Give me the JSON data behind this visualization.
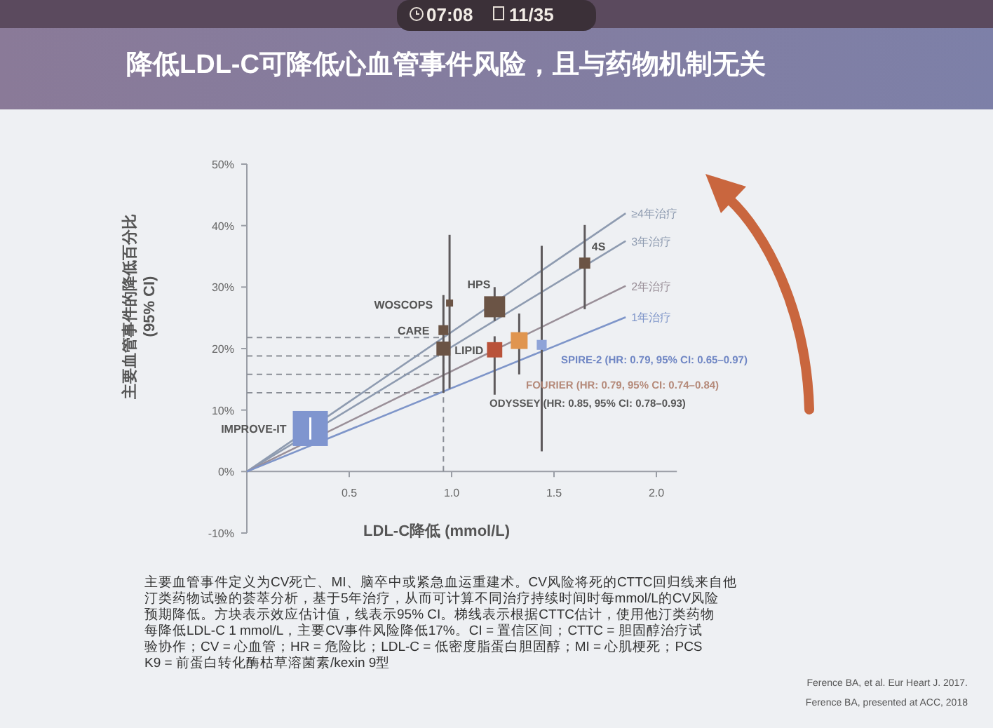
{
  "chart_data": {
    "type": "bubble",
    "title": "降低LDL-C可降低心血管事件风险，且与药物机制无关",
    "xlabel": "LDL-C降低 (mmol/L)",
    "ylabel": "主要血管事件的降低百分比\n(95% CI)",
    "xlim": [
      0,
      2.1
    ],
    "xticks": [
      {
        "value": 0.5,
        "label": "0.5"
      },
      {
        "value": 1,
        "label": "1.0"
      },
      {
        "value": 1.5,
        "label": "1.5"
      },
      {
        "value": 2,
        "label": "2.0"
      }
    ],
    "ylim": [
      -10,
      50
    ],
    "yticks": [
      {
        "value": -10,
        "label": "-10%"
      },
      {
        "value": 0,
        "label": "0%"
      },
      {
        "value": 10,
        "label": "10%"
      },
      {
        "value": 20,
        "label": "20%"
      },
      {
        "value": 30,
        "label": "30%"
      },
      {
        "value": 40,
        "label": "40%"
      },
      {
        "value": 50,
        "label": "50%"
      }
    ],
    "grid": false,
    "legend": false,
    "series": [
      {
        "type": "line",
        "name": "≥4年治疗",
        "color": "#8e9bb0",
        "x": [
          0,
          1.85
        ],
        "values": [
          0,
          42
        ]
      },
      {
        "type": "line",
        "name": "3年治疗",
        "color": "#8e9bb0",
        "x": [
          0,
          1.85
        ],
        "values": [
          0,
          37.5
        ]
      },
      {
        "type": "line",
        "name": "2年治疗",
        "color": "#9a8f98",
        "x": [
          0,
          1.85
        ],
        "values": [
          0,
          30.2
        ]
      },
      {
        "type": "line",
        "name": "1年治疗",
        "color": "#7e95c9",
        "x": [
          0,
          1.85
        ],
        "values": [
          0,
          25.1
        ]
      },
      {
        "marker": "square",
        "x": [
          0.31,
          0.96,
          0.99,
          0.96,
          1.21,
          1.65,
          1.21,
          1.33,
          1.44
        ],
        "values": [
          7,
          23,
          27.4,
          20,
          26.8,
          33.9,
          19.8,
          21.3,
          20.6
        ],
        "sizes": [
          1,
          0.08,
          0.04,
          0.16,
          0.36,
          0.1,
          0.19,
          0.23,
          0.08
        ],
        "colors": [
          "#7f95cf",
          "#6b5445",
          "#6b5445",
          "#6b5445",
          "#6b5445",
          "#6b5445",
          "#b9523a",
          "#e0954f",
          "#8ea3d8"
        ],
        "errors": [
          [
            5.2,
            8.8
          ],
          [
            12.8,
            28.7
          ],
          [
            13.5,
            38.5
          ],
          null,
          [
            24.5,
            30
          ],
          [
            26.4,
            40.1
          ],
          [
            12.5,
            22
          ],
          [
            15.8,
            25.7
          ],
          [
            3.3,
            36.7
          ]
        ]
      }
    ],
    "ref_lines": [
      {
        "axis": "y",
        "value": 21.8,
        "line_style": "dashed"
      },
      {
        "axis": "y",
        "value": 18.8,
        "line_style": "dashed"
      },
      {
        "axis": "y",
        "value": 15.8,
        "line_style": "dashed"
      },
      {
        "axis": "y",
        "value": 12.8,
        "line_style": "dashed"
      },
      {
        "axis": "x",
        "value": 0.96,
        "line_style": "dashed"
      }
    ],
    "annotations": [
      "07:08",
      "11/35",
      "主要血管事件定义为CV死亡、MI、脑卒中或紧急血运重建术。CV风险将死的CTTC回归线来自他汀类药物试验的荟萃分析，基于5年治疗，从而可计算不同治疗持续时间时每mmol/L的CV风险预期降低。方块表示效应估计值，线表示95% CI。梯线表示根据CTTC估计，使用他汀类药物每降低LDL-C 1 mmol/L，主要CV事件风险降低17%。CI = 置信区间；CTTC = 胆固醇治疗试验协作；CV = 心血管；HR = 危险比；LDL-C = 低密度脂蛋白胆固醇；MI = 心肌梗死；PCSK9 = 前蛋白转化酶枯草溶菌素/kexin 9型",
      "Ference BA, et al. Eur Heart J. 2017.",
      "Ference BA, presented at ACC, 2018",
      "SPIRE-2 (HR: 0.79, 95% CI: 0.65–0.97)",
      "FOURIER (HR: 0.79, 95% CI: 0.74–0.84)",
      "ODYSSEY (HR: 0.85, 95% CI: 0.78–0.93)",
      {
        "text": "IMPROVE-IT",
        "x": 0.31,
        "y": 7
      },
      {
        "text": "CARE",
        "x": 0.96,
        "y": 23
      },
      {
        "text": "WOSCOPS",
        "x": 0.99,
        "y": 27.4
      },
      {
        "text": "LIPID",
        "x": 0.96,
        "y": 20
      },
      {
        "text": "HPS",
        "x": 1.21,
        "y": 26.8
      },
      {
        "text": "4S",
        "x": 1.65,
        "y": 33.9
      }
    ]
  }
}
